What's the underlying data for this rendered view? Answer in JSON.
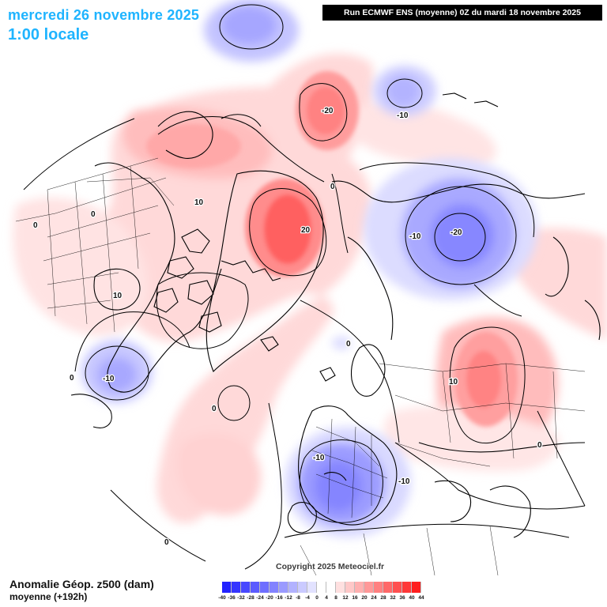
{
  "header": {
    "date_label": "mercredi 26 novembre 2025",
    "time_label": "1:00 locale"
  },
  "run_info": "Run ECMWF ENS (moyenne) 0Z du mardi 18 novembre 2025",
  "copyright": "Copyright 2025 Meteociel.fr",
  "legend": {
    "title": "Anomalie Géop. z500 (dam)",
    "subtitle": "moyenne   (+192h)",
    "scale_labels": [
      "-40",
      "-36",
      "-32",
      "-28",
      "-24",
      "-20",
      "-16",
      "-12",
      "-8",
      "-4",
      "0",
      "4",
      "8",
      "12",
      "16",
      "20",
      "24",
      "28",
      "32",
      "36",
      "40",
      "44"
    ],
    "scale_colors": [
      "#2222ff",
      "#3535ff",
      "#4848ff",
      "#5b5bff",
      "#6e6eff",
      "#8282ff",
      "#9a9aff",
      "#b2b2ff",
      "#cacaff",
      "#e2e2ff",
      "#ffffff",
      "#ffffff",
      "#ffe0e0",
      "#ffc8c8",
      "#ffb0b0",
      "#ff9898",
      "#ff8080",
      "#ff6868",
      "#ff5050",
      "#ff3838",
      "#ff1e1e"
    ]
  },
  "contour_labels": [
    {
      "id": "c1",
      "text": "-20"
    },
    {
      "id": "c2",
      "text": "-10"
    },
    {
      "id": "c3",
      "text": "0"
    },
    {
      "id": "c4",
      "text": "20"
    },
    {
      "id": "c5",
      "text": "10"
    },
    {
      "id": "c6",
      "text": "0"
    },
    {
      "id": "c7",
      "text": "0"
    },
    {
      "id": "c8",
      "text": "-10"
    },
    {
      "id": "c9",
      "text": "-20"
    },
    {
      "id": "c10",
      "text": "10"
    },
    {
      "id": "c11",
      "text": "-10"
    },
    {
      "id": "c12",
      "text": "10"
    },
    {
      "id": "c13",
      "text": "0"
    },
    {
      "id": "c14",
      "text": "0"
    },
    {
      "id": "c15",
      "text": "-10"
    },
    {
      "id": "c16",
      "text": "-10"
    },
    {
      "id": "c17",
      "text": "0"
    },
    {
      "id": "c18",
      "text": "0"
    },
    {
      "id": "c19",
      "text": "0"
    }
  ]
}
